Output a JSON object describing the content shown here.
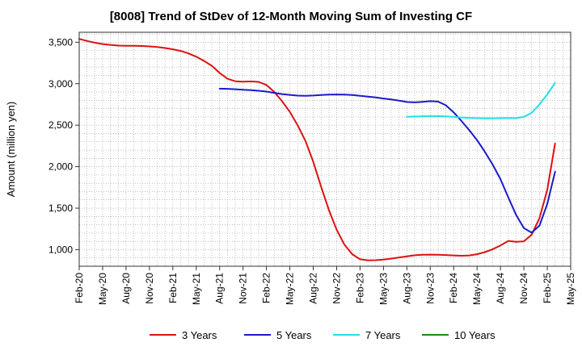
{
  "chart_data": {
    "type": "line",
    "title": "[8008]  Trend of StDev of 12-Month Moving Sum of Investing CF",
    "ylabel": "Amount (million yen)",
    "xlabel": "",
    "ylim": [
      800,
      3620
    ],
    "yticks": [
      1000,
      1500,
      2000,
      2500,
      3000,
      3500
    ],
    "ytick_labels": [
      "1,000",
      "1,500",
      "2,000",
      "2,500",
      "3,000",
      "3,500"
    ],
    "xlim": [
      "2020-02",
      "2025-05"
    ],
    "xtick_labels": [
      "Feb-20",
      "May-20",
      "Aug-20",
      "Nov-20",
      "Feb-21",
      "May-21",
      "Aug-21",
      "Nov-21",
      "Feb-22",
      "May-22",
      "Aug-22",
      "Nov-22",
      "Feb-23",
      "May-23",
      "Aug-23",
      "Nov-23",
      "Feb-24",
      "May-24",
      "Aug-24",
      "Nov-24",
      "Feb-25",
      "May-25"
    ],
    "grid": true,
    "legend_position": "bottom",
    "series": [
      {
        "name": "3 Years",
        "color": "#dd1111",
        "points": [
          [
            "2020-02",
            3540
          ],
          [
            "2020-03",
            3515
          ],
          [
            "2020-04",
            3495
          ],
          [
            "2020-05",
            3478
          ],
          [
            "2020-06",
            3468
          ],
          [
            "2020-07",
            3460
          ],
          [
            "2020-08",
            3458
          ],
          [
            "2020-09",
            3457
          ],
          [
            "2020-10",
            3455
          ],
          [
            "2020-11",
            3450
          ],
          [
            "2020-12",
            3442
          ],
          [
            "2021-01",
            3430
          ],
          [
            "2021-02",
            3415
          ],
          [
            "2021-03",
            3395
          ],
          [
            "2021-04",
            3365
          ],
          [
            "2021-05",
            3325
          ],
          [
            "2021-06",
            3275
          ],
          [
            "2021-07",
            3215
          ],
          [
            "2021-08",
            3130
          ],
          [
            "2021-09",
            3060
          ],
          [
            "2021-10",
            3030
          ],
          [
            "2021-11",
            3025
          ],
          [
            "2021-12",
            3028
          ],
          [
            "2022-01",
            3022
          ],
          [
            "2022-02",
            2985
          ],
          [
            "2022-03",
            2900
          ],
          [
            "2022-04",
            2790
          ],
          [
            "2022-05",
            2660
          ],
          [
            "2022-06",
            2500
          ],
          [
            "2022-07",
            2310
          ],
          [
            "2022-08",
            2060
          ],
          [
            "2022-09",
            1760
          ],
          [
            "2022-10",
            1480
          ],
          [
            "2022-11",
            1240
          ],
          [
            "2022-12",
            1060
          ],
          [
            "2023-01",
            945
          ],
          [
            "2023-02",
            885
          ],
          [
            "2023-03",
            872
          ],
          [
            "2023-04",
            873
          ],
          [
            "2023-05",
            880
          ],
          [
            "2023-06",
            892
          ],
          [
            "2023-07",
            906
          ],
          [
            "2023-08",
            920
          ],
          [
            "2023-09",
            932
          ],
          [
            "2023-10",
            938
          ],
          [
            "2023-11",
            940
          ],
          [
            "2023-12",
            938
          ],
          [
            "2024-01",
            935
          ],
          [
            "2024-02",
            930
          ],
          [
            "2024-03",
            926
          ],
          [
            "2024-04",
            930
          ],
          [
            "2024-05",
            945
          ],
          [
            "2024-06",
            970
          ],
          [
            "2024-07",
            1005
          ],
          [
            "2024-08",
            1050
          ],
          [
            "2024-09",
            1105
          ],
          [
            "2024-10",
            1095
          ],
          [
            "2024-11",
            1100
          ],
          [
            "2024-12",
            1180
          ],
          [
            "2025-01",
            1380
          ],
          [
            "2025-02",
            1720
          ],
          [
            "2025-03",
            2280
          ]
        ]
      },
      {
        "name": "5 Years",
        "color": "#1a1acc",
        "points": [
          [
            "2021-08",
            2940
          ],
          [
            "2021-09",
            2938
          ],
          [
            "2021-10",
            2933
          ],
          [
            "2021-11",
            2928
          ],
          [
            "2021-12",
            2923
          ],
          [
            "2022-01",
            2915
          ],
          [
            "2022-02",
            2905
          ],
          [
            "2022-03",
            2890
          ],
          [
            "2022-04",
            2875
          ],
          [
            "2022-05",
            2865
          ],
          [
            "2022-06",
            2857
          ],
          [
            "2022-07",
            2855
          ],
          [
            "2022-08",
            2858
          ],
          [
            "2022-09",
            2863
          ],
          [
            "2022-10",
            2868
          ],
          [
            "2022-11",
            2870
          ],
          [
            "2022-12",
            2869
          ],
          [
            "2023-01",
            2864
          ],
          [
            "2023-02",
            2855
          ],
          [
            "2023-03",
            2845
          ],
          [
            "2023-04",
            2835
          ],
          [
            "2023-05",
            2822
          ],
          [
            "2023-06",
            2810
          ],
          [
            "2023-07",
            2795
          ],
          [
            "2023-08",
            2780
          ],
          [
            "2023-09",
            2775
          ],
          [
            "2023-10",
            2782
          ],
          [
            "2023-11",
            2790
          ],
          [
            "2023-12",
            2785
          ],
          [
            "2024-01",
            2740
          ],
          [
            "2024-02",
            2655
          ],
          [
            "2024-03",
            2550
          ],
          [
            "2024-04",
            2440
          ],
          [
            "2024-05",
            2320
          ],
          [
            "2024-06",
            2180
          ],
          [
            "2024-07",
            2025
          ],
          [
            "2024-08",
            1850
          ],
          [
            "2024-09",
            1630
          ],
          [
            "2024-10",
            1420
          ],
          [
            "2024-11",
            1260
          ],
          [
            "2024-12",
            1205
          ],
          [
            "2025-01",
            1290
          ],
          [
            "2025-02",
            1550
          ],
          [
            "2025-03",
            1940
          ]
        ]
      },
      {
        "name": "7 Years",
        "color": "#22e0e8",
        "points": [
          [
            "2023-08",
            2600
          ],
          [
            "2023-09",
            2605
          ],
          [
            "2023-10",
            2608
          ],
          [
            "2023-11",
            2610
          ],
          [
            "2023-12",
            2610
          ],
          [
            "2024-01",
            2607
          ],
          [
            "2024-02",
            2600
          ],
          [
            "2024-03",
            2593
          ],
          [
            "2024-04",
            2588
          ],
          [
            "2024-05",
            2585
          ],
          [
            "2024-06",
            2583
          ],
          [
            "2024-07",
            2583
          ],
          [
            "2024-08",
            2585
          ],
          [
            "2024-09",
            2587
          ],
          [
            "2024-10",
            2585
          ],
          [
            "2024-11",
            2600
          ],
          [
            "2024-12",
            2650
          ],
          [
            "2025-01",
            2750
          ],
          [
            "2025-02",
            2870
          ],
          [
            "2025-03",
            3010
          ]
        ]
      },
      {
        "name": "10 Years",
        "color": "#1a8a1a",
        "points": []
      }
    ]
  }
}
